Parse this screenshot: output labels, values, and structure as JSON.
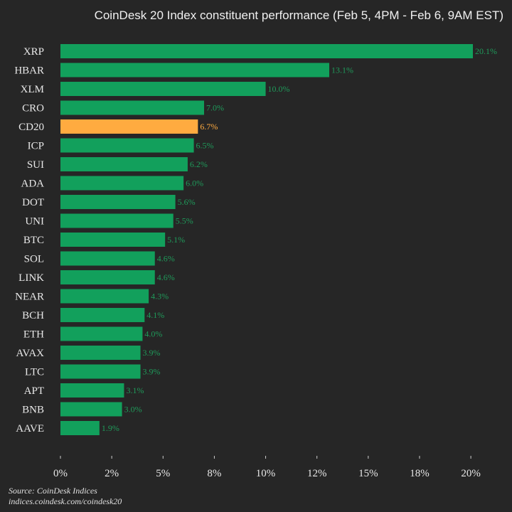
{
  "chart_data": {
    "type": "bar",
    "orientation": "horizontal",
    "title": "CoinDesk 20 Index constituent performance (Feb 5, 4PM - Feb 6, 9AM EST)",
    "categories": [
      "XRP",
      "HBAR",
      "XLM",
      "CRO",
      "CD20",
      "ICP",
      "SUI",
      "ADA",
      "DOT",
      "UNI",
      "BTC",
      "SOL",
      "LINK",
      "NEAR",
      "BCH",
      "ETH",
      "AVAX",
      "LTC",
      "APT",
      "BNB",
      "AAVE"
    ],
    "values": [
      20.1,
      13.1,
      10.0,
      7.0,
      6.7,
      6.5,
      6.2,
      6.0,
      5.6,
      5.5,
      5.1,
      4.6,
      4.6,
      4.3,
      4.1,
      4.0,
      3.9,
      3.9,
      3.1,
      3.0,
      1.9
    ],
    "value_labels": [
      "20.1%",
      "13.1%",
      "10.0%",
      "7.0%",
      "6.7%",
      "6.5%",
      "6.2%",
      "6.0%",
      "5.6%",
      "5.5%",
      "5.1%",
      "4.6%",
      "4.6%",
      "4.3%",
      "4.1%",
      "4.0%",
      "3.9%",
      "3.9%",
      "3.1%",
      "3.0%",
      "1.9%"
    ],
    "highlight": "CD20",
    "x_ticks": [
      0,
      2.5,
      5,
      7.5,
      10,
      12.5,
      15,
      17.5,
      20
    ],
    "x_tick_labels": [
      "0%",
      "2%",
      "5%",
      "8%",
      "10%",
      "12%",
      "15%",
      "18%",
      "20%"
    ],
    "xlim": [
      0,
      20.1
    ],
    "xlabel": "",
    "ylabel": "",
    "grid": false
  },
  "colors": {
    "bar": "#12a05c",
    "highlight": "#ffab40",
    "label": "#1f9a5a",
    "background": "#262626"
  },
  "footer": {
    "source": "Source: CoinDesk Indices",
    "url": "indices.coindesk.com/coindesk20"
  }
}
